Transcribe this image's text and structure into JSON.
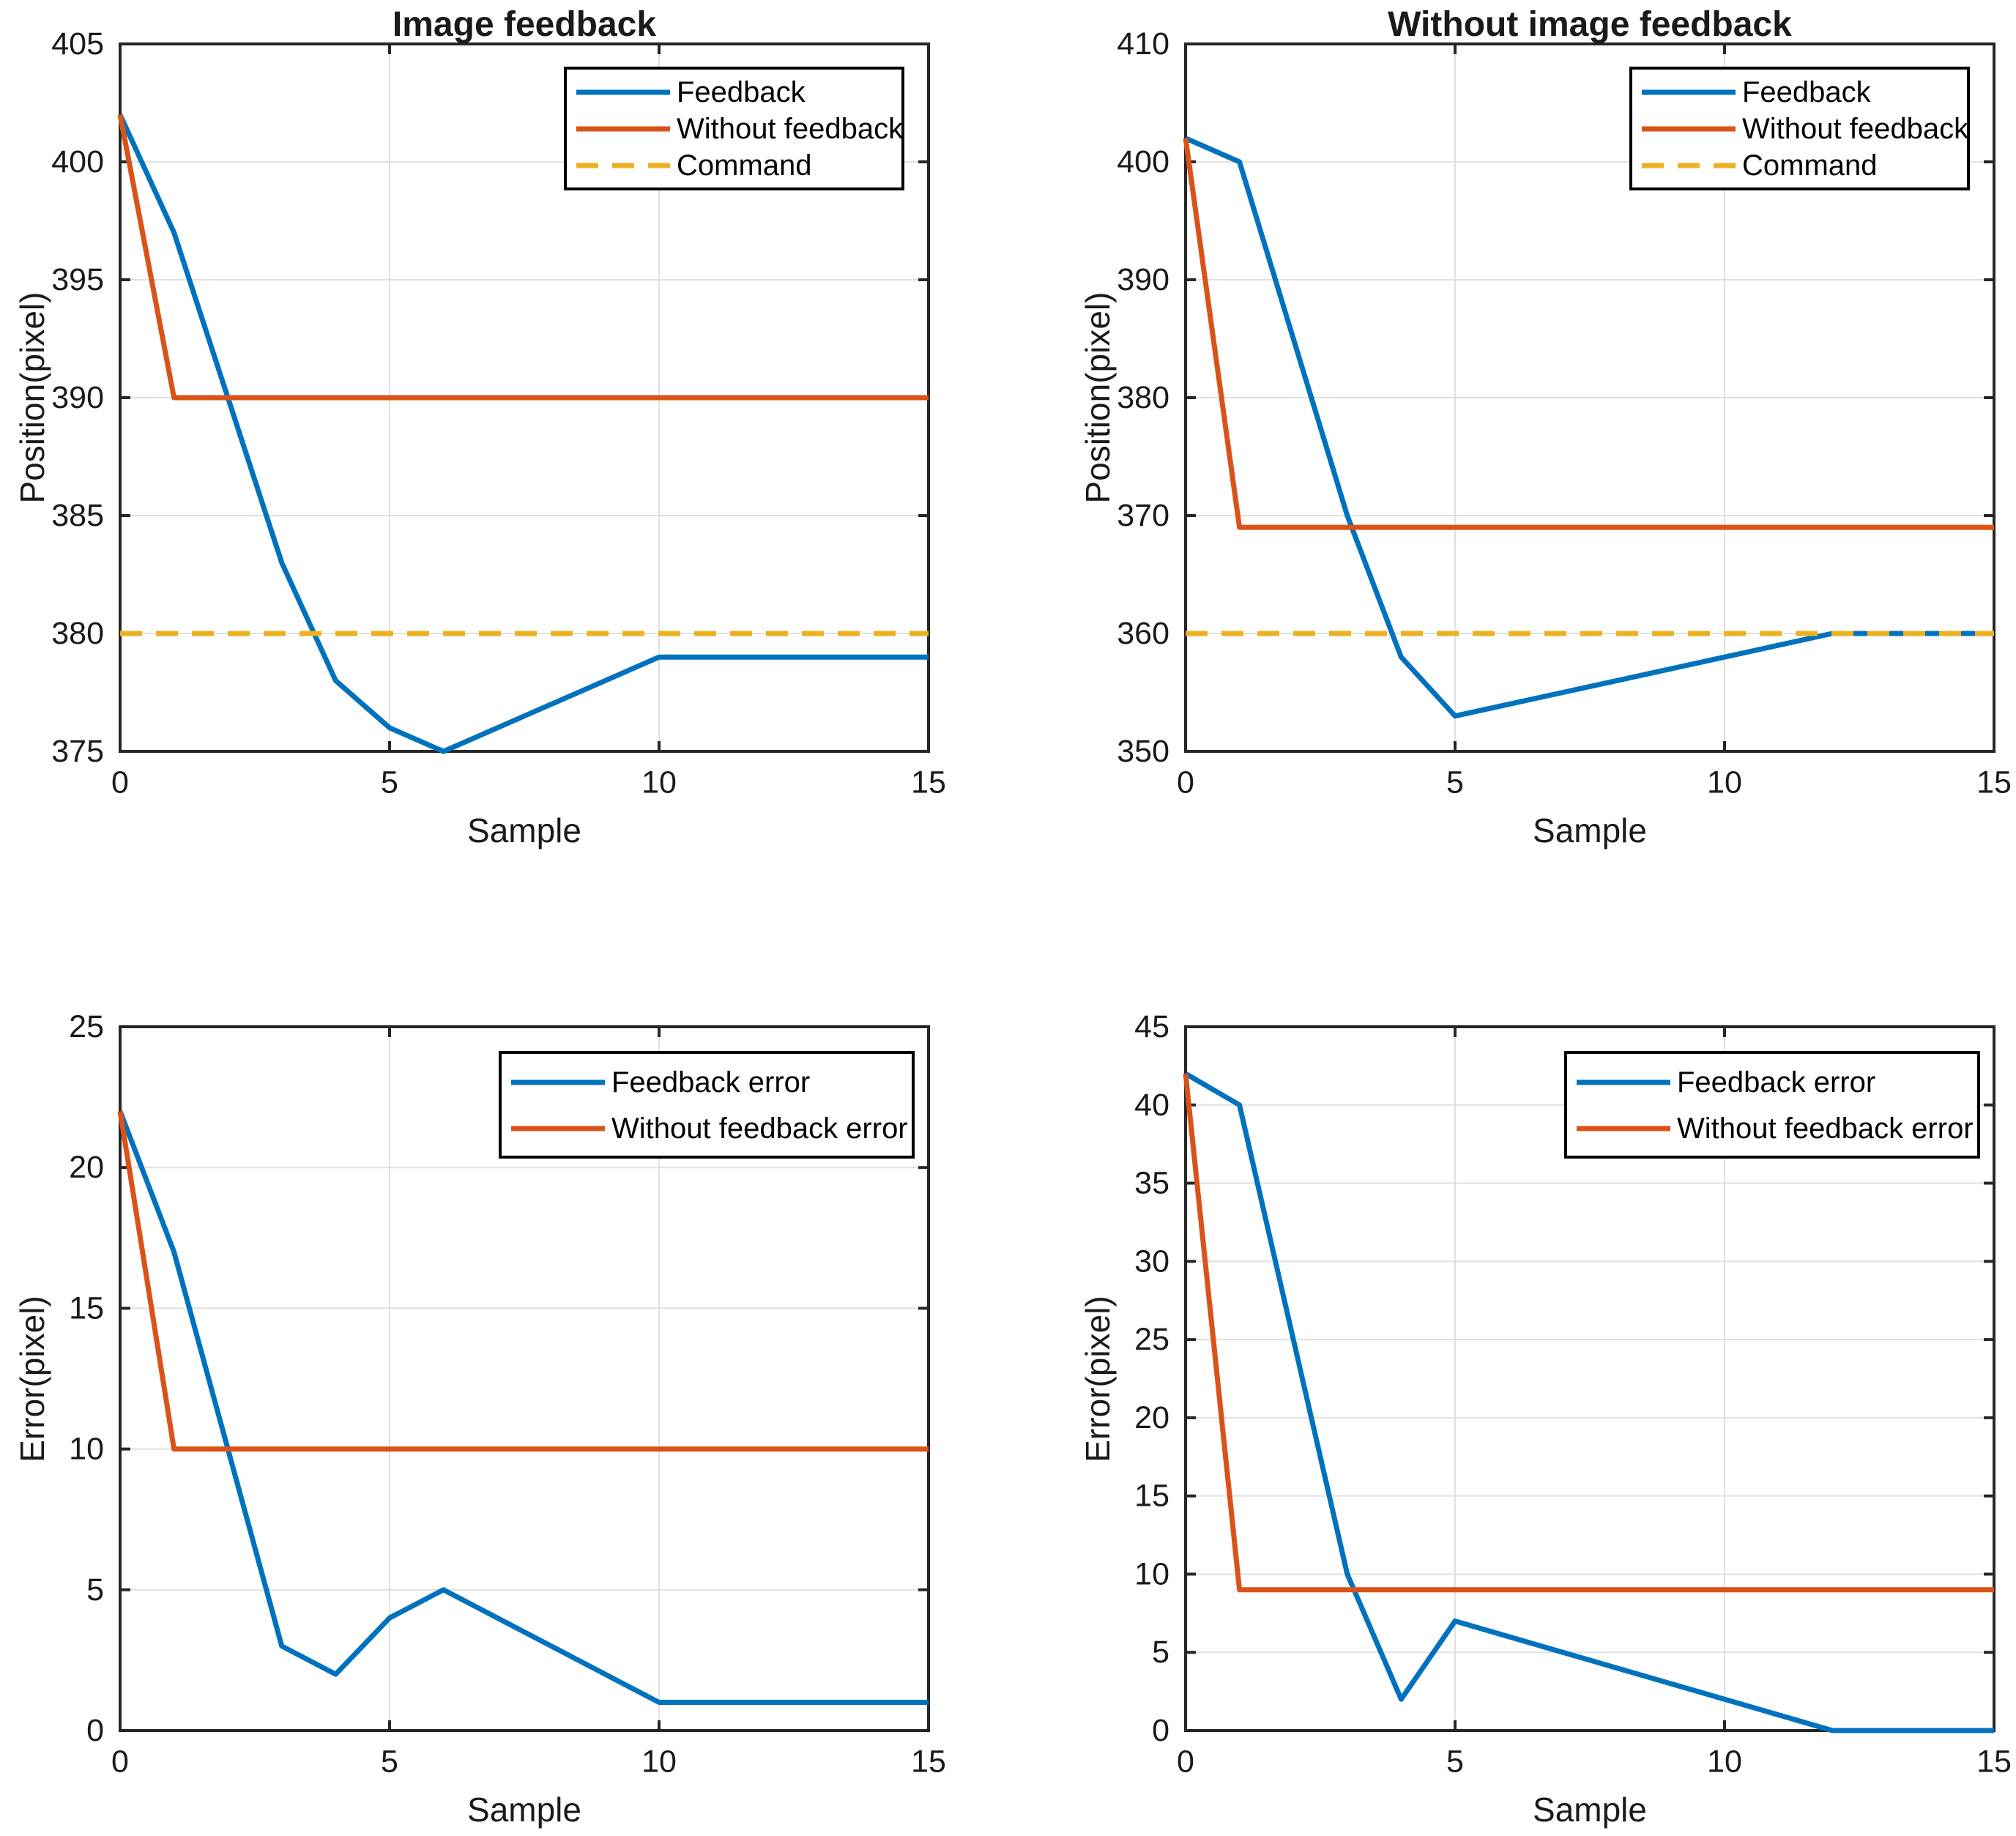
{
  "figure": {
    "background": "#ffffff"
  },
  "colors": {
    "blue": "#0072BD",
    "orange": "#D95319",
    "yellow": "#EDB120",
    "axis": "#262626",
    "grid": "#E0E0E0",
    "text": "#1a1a1a",
    "legend_bg": "#ffffff",
    "legend_border": "#000000"
  },
  "chart_data": [
    {
      "type": "line",
      "title": "Image feedback",
      "xlabel": "Sample",
      "ylabel": "Position(pixel)",
      "xlim": [
        0,
        15
      ],
      "ylim": [
        375,
        405
      ],
      "xticks": [
        0,
        5,
        10,
        15
      ],
      "yticks": [
        375,
        380,
        385,
        390,
        395,
        400,
        405
      ],
      "grid": true,
      "legend_position": "top-right",
      "x": [
        0,
        1,
        2,
        3,
        4,
        5,
        6,
        7,
        8,
        9,
        10,
        11,
        12,
        13,
        14,
        15
      ],
      "series": [
        {
          "name": "Feedback",
          "color": "blue",
          "dash": false,
          "values": [
            402,
            397,
            390,
            383,
            378,
            376,
            375,
            376,
            377,
            378,
            379,
            379,
            379,
            379,
            379,
            379
          ]
        },
        {
          "name": "Without feedback",
          "color": "orange",
          "dash": false,
          "values": [
            402,
            390,
            390,
            390,
            390,
            390,
            390,
            390,
            390,
            390,
            390,
            390,
            390,
            390,
            390,
            390
          ]
        },
        {
          "name": "Command",
          "color": "yellow",
          "dash": true,
          "values": [
            380,
            380,
            380,
            380,
            380,
            380,
            380,
            380,
            380,
            380,
            380,
            380,
            380,
            380,
            380,
            380
          ]
        }
      ]
    },
    {
      "type": "line",
      "title": "Without image feedback",
      "xlabel": "Sample",
      "ylabel": "Position(pixel)",
      "xlim": [
        0,
        15
      ],
      "ylim": [
        350,
        410
      ],
      "xticks": [
        0,
        5,
        10,
        15
      ],
      "yticks": [
        350,
        360,
        370,
        380,
        390,
        400,
        410
      ],
      "grid": true,
      "legend_position": "top-right",
      "x": [
        0,
        1,
        2,
        3,
        4,
        5,
        6,
        7,
        8,
        9,
        10,
        11,
        12,
        13,
        14,
        15
      ],
      "series": [
        {
          "name": "Feedback",
          "color": "blue",
          "dash": false,
          "values": [
            402,
            400,
            385,
            370,
            358,
            353,
            354,
            355,
            356,
            357,
            358,
            359,
            360,
            360,
            360,
            360
          ]
        },
        {
          "name": "Without feedback",
          "color": "orange",
          "dash": false,
          "values": [
            402,
            369,
            369,
            369,
            369,
            369,
            369,
            369,
            369,
            369,
            369,
            369,
            369,
            369,
            369,
            369
          ]
        },
        {
          "name": "Command",
          "color": "yellow",
          "dash": true,
          "values": [
            360,
            360,
            360,
            360,
            360,
            360,
            360,
            360,
            360,
            360,
            360,
            360,
            360,
            360,
            360,
            360
          ]
        }
      ]
    },
    {
      "type": "line",
      "title": "",
      "xlabel": "Sample",
      "ylabel": "Error(pixel)",
      "xlim": [
        0,
        15
      ],
      "ylim": [
        0,
        25
      ],
      "xticks": [
        0,
        5,
        10,
        15
      ],
      "yticks": [
        0,
        5,
        10,
        15,
        20,
        25
      ],
      "grid": true,
      "legend_position": "top-right",
      "x": [
        0,
        1,
        2,
        3,
        4,
        5,
        6,
        7,
        8,
        9,
        10,
        11,
        12,
        13,
        14,
        15
      ],
      "series": [
        {
          "name": "Feedback error",
          "color": "blue",
          "dash": false,
          "values": [
            22,
            17,
            10,
            3,
            2,
            4,
            5,
            4,
            3,
            2,
            1,
            1,
            1,
            1,
            1,
            1
          ]
        },
        {
          "name": "Without feedback error",
          "color": "orange",
          "dash": false,
          "values": [
            22,
            10,
            10,
            10,
            10,
            10,
            10,
            10,
            10,
            10,
            10,
            10,
            10,
            10,
            10,
            10
          ]
        }
      ]
    },
    {
      "type": "line",
      "title": "",
      "xlabel": "Sample",
      "ylabel": "Error(pixel)",
      "xlim": [
        0,
        15
      ],
      "ylim": [
        0,
        45
      ],
      "xticks": [
        0,
        5,
        10,
        15
      ],
      "yticks": [
        0,
        5,
        10,
        15,
        20,
        25,
        30,
        35,
        40,
        45
      ],
      "grid": true,
      "legend_position": "top-right",
      "x": [
        0,
        1,
        2,
        3,
        4,
        5,
        6,
        7,
        8,
        9,
        10,
        11,
        12,
        13,
        14,
        15
      ],
      "series": [
        {
          "name": "Feedback error",
          "color": "blue",
          "dash": false,
          "values": [
            42,
            40,
            25,
            10,
            2,
            7,
            6,
            5,
            4,
            3,
            2,
            1,
            0,
            0,
            0,
            0
          ]
        },
        {
          "name": "Without feedback error",
          "color": "orange",
          "dash": false,
          "values": [
            42,
            9,
            9,
            9,
            9,
            9,
            9,
            9,
            9,
            9,
            9,
            9,
            9,
            9,
            9,
            9
          ]
        }
      ]
    }
  ]
}
